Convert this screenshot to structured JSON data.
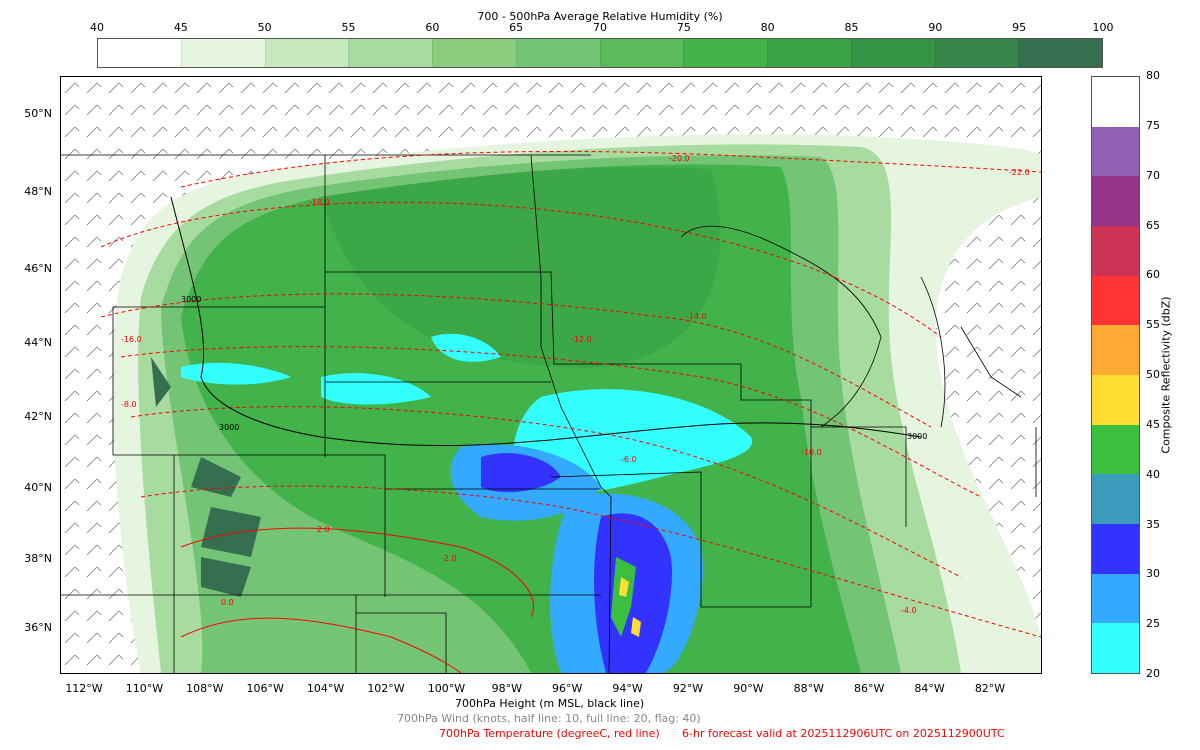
{
  "rh_colorbar": {
    "title": "700 - 500hPa Average Relative Humidity (%)",
    "ticks": [
      "40",
      "45",
      "50",
      "55",
      "60",
      "65",
      "70",
      "75",
      "80",
      "85",
      "90",
      "95",
      "100"
    ],
    "colors": [
      "#ffffff",
      "#e5f5e0",
      "#c7e9c0",
      "#a8dba0",
      "#8bcc7e",
      "#74c476",
      "#5cb95c",
      "#41b34a",
      "#3aa346",
      "#359445",
      "#37864a",
      "#356f4f"
    ]
  },
  "refl_colorbar": {
    "label": "Composite Reflectivity (dbZ)",
    "ticks": [
      "20",
      "25",
      "30",
      "35",
      "40",
      "45",
      "50",
      "55",
      "60",
      "65",
      "70",
      "75",
      "80"
    ],
    "colors": [
      "#33ffff",
      "#33aaff",
      "#3333ff",
      "#3a9bbd",
      "#3abf3f",
      "#ffdd33",
      "#ffaa33",
      "#ff3333",
      "#cc3355",
      "#93348a",
      "#935fb3",
      "#ffffff"
    ]
  },
  "map": {
    "lat_labels": [
      "50°N",
      "48°N",
      "46°N",
      "44°N",
      "42°N",
      "40°N",
      "38°N",
      "36°N"
    ],
    "lon_labels": [
      "112°W",
      "110°W",
      "108°W",
      "106°W",
      "104°W",
      "102°W",
      "100°W",
      "98°W",
      "96°W",
      "94°W",
      "92°W",
      "90°W",
      "88°W",
      "86°W",
      "84°W",
      "82°W"
    ],
    "height_contour_labels": [
      "3000",
      "3000",
      "3000"
    ],
    "temp_contour_labels": [
      "-20.0",
      "-18.0",
      "-16.0",
      "-14.0",
      "-12.0",
      "-10.0",
      "-8.0",
      "-6.0",
      "-4.0",
      "-2.0",
      "0.0",
      "2.0",
      "-22.0"
    ]
  },
  "captions": {
    "height": "700hPa Height (m MSL, black line)",
    "wind": "700hPa Wind (knots, half line: 10, full line: 20, flag: 40)",
    "temp": "700hPa Temperature (degreeC, red line)",
    "valid": "6-hr forecast valid at 2025112906UTC on 2025112900UTC"
  }
}
